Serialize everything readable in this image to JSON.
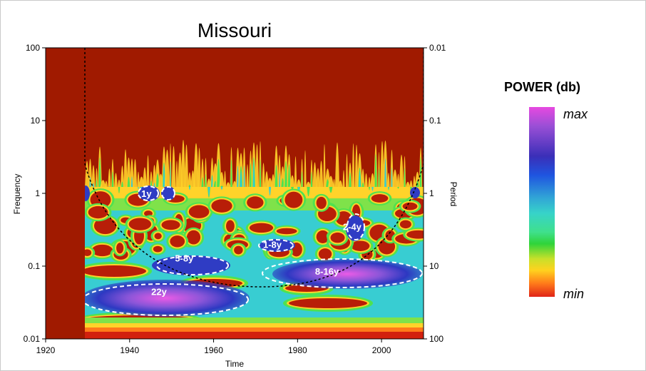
{
  "chart_data": {
    "type": "heatmap",
    "title": "Missouri",
    "xlabel": "Time",
    "ylabel_left": "Frequency",
    "ylabel_right": "Period",
    "xlim": [
      1920,
      2010
    ],
    "ylim_frequency": [
      0.01,
      100
    ],
    "ylim_period": [
      100,
      0.01
    ],
    "yscale": "log",
    "x_ticks": [
      "1920",
      "1940",
      "1960",
      "1980",
      "2000"
    ],
    "y_ticks_left": [
      "100",
      "10",
      "1",
      "0.1",
      "0.01"
    ],
    "y_ticks_right": [
      "0.01",
      "0.1",
      "1",
      "10",
      "100"
    ],
    "annotations": [
      {
        "text": "1y",
        "x": 1944,
        "freq": 1.0
      },
      {
        "text": "1-8y",
        "x": 1974,
        "freq": 0.2
      },
      {
        "text": "2-4y",
        "x": 1993,
        "freq": 0.35
      },
      {
        "text": "5-8y",
        "x": 1953,
        "freq": 0.13
      },
      {
        "text": "8-16y",
        "x": 1987,
        "freq": 0.085
      },
      {
        "text": "22y",
        "x": 1947,
        "freq": 0.045
      }
    ],
    "cone_of_influence": true,
    "grid": false,
    "legend": {
      "title": "POWER (db)",
      "max_label": "max",
      "min_label": "min",
      "placement": "right"
    }
  }
}
